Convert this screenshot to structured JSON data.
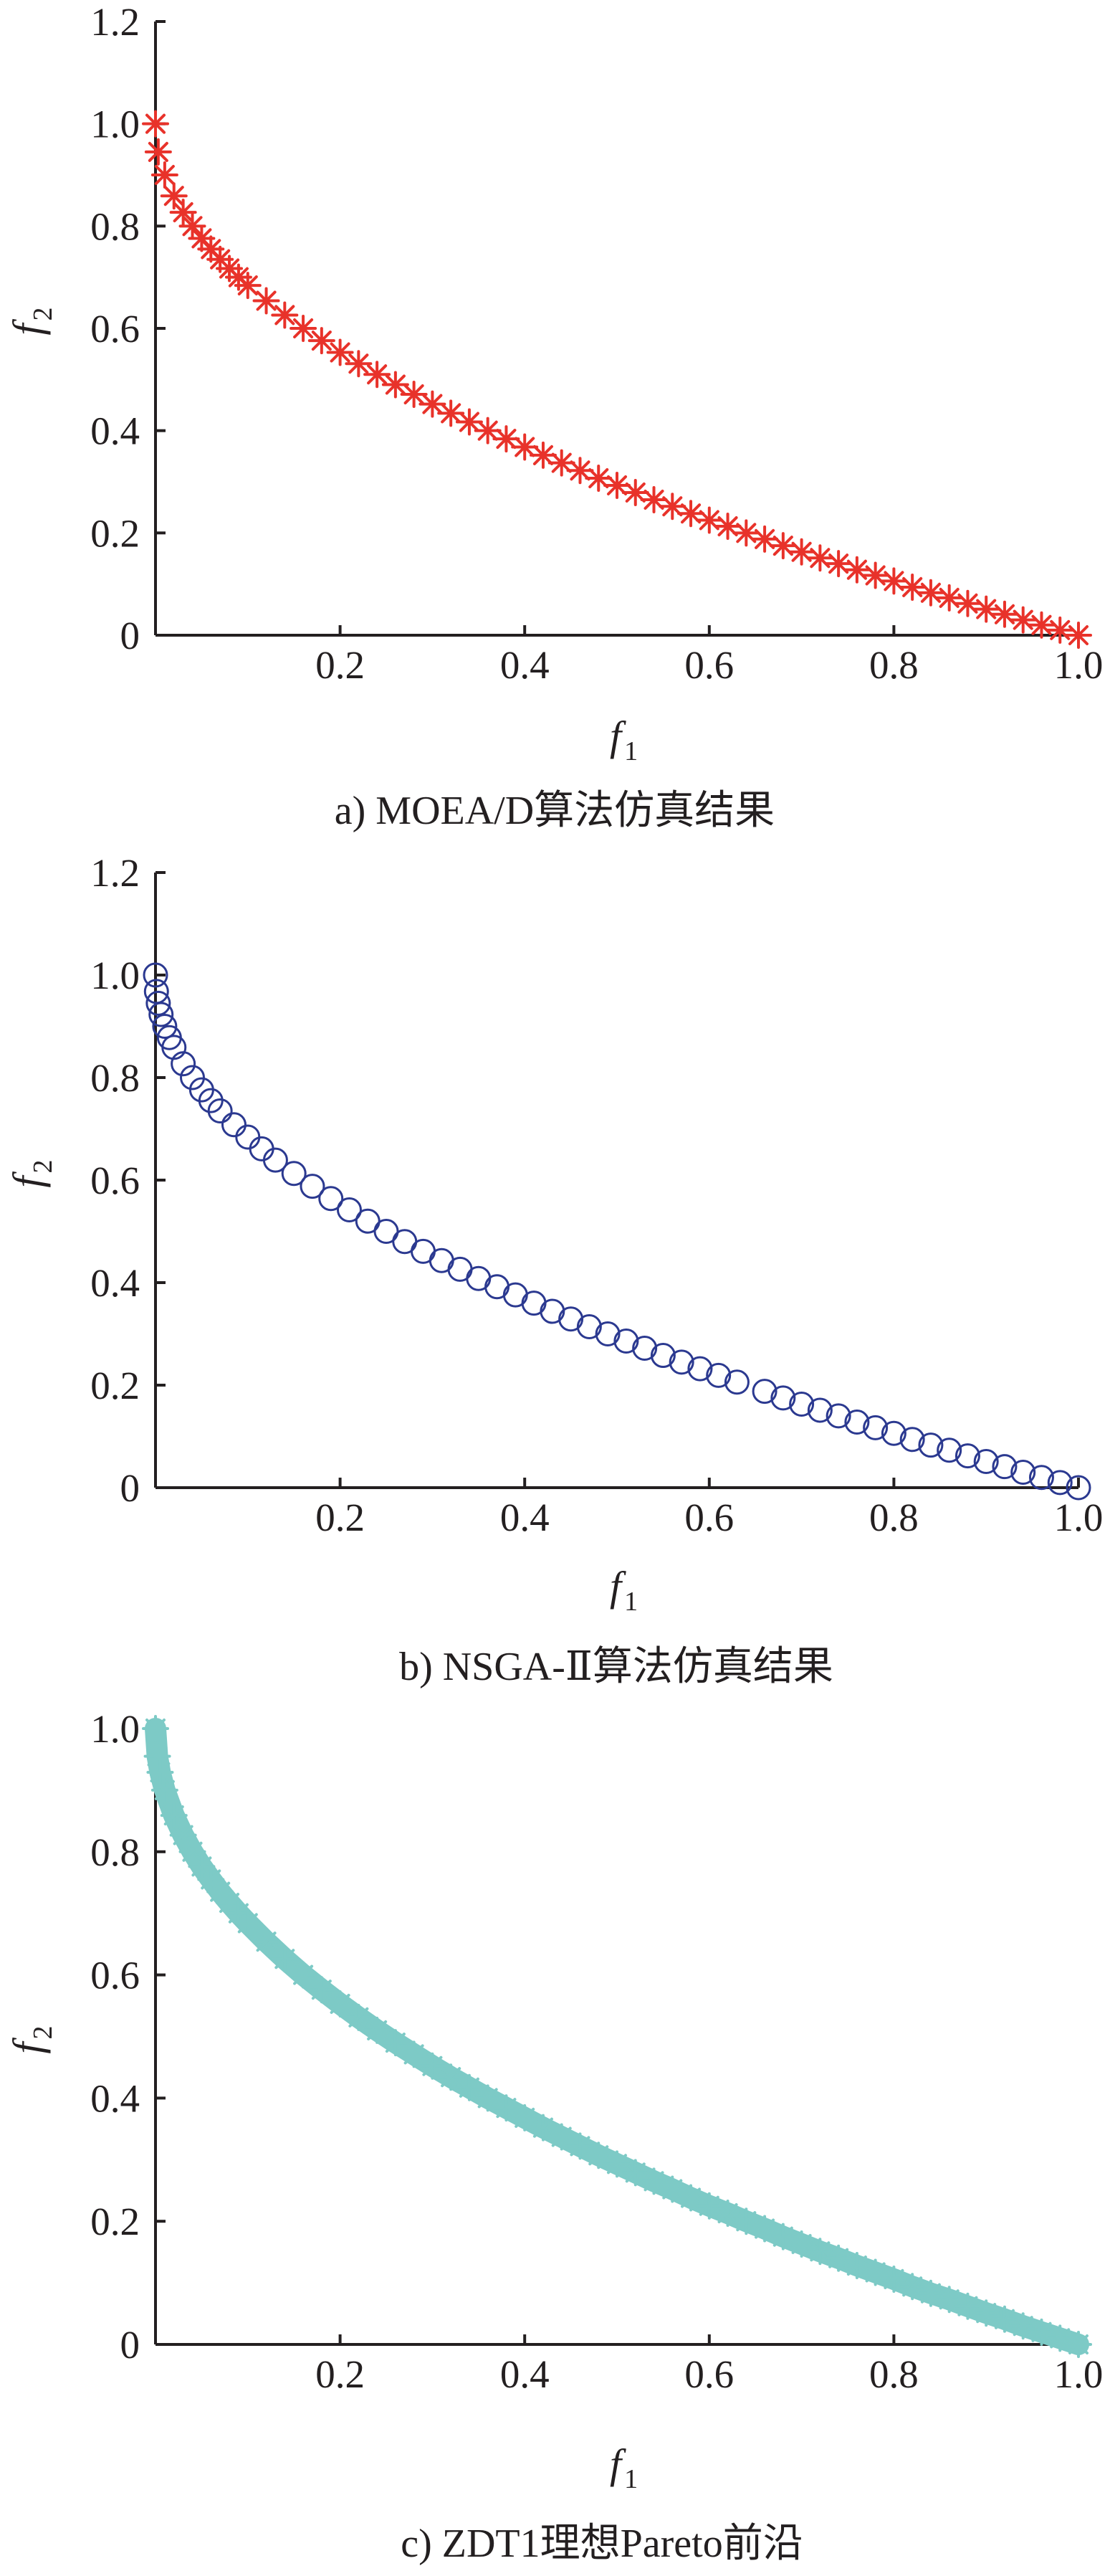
{
  "chart_data": [
    {
      "type": "scatter",
      "caption": "a) MOEA/D算法仿真结果",
      "xlabel": "f",
      "xlabel_sub": "1",
      "ylabel": "f",
      "ylabel_sub": "2",
      "xlim": [
        0,
        1
      ],
      "ylim": [
        0,
        1.2
      ],
      "xticks": [
        "0.2",
        "0.4",
        "0.6",
        "0.8",
        "1.0"
      ],
      "xtick_values": [
        0.2,
        0.4,
        0.6,
        0.8,
        1.0
      ],
      "yticks": [
        "0",
        "0.2",
        "0.4",
        "0.6",
        "0.8",
        "1.0",
        "1.2"
      ],
      "ytick_values": [
        0,
        0.2,
        0.4,
        0.6,
        0.8,
        1.0,
        1.2
      ],
      "marker": "asterisk",
      "color": "#e8322a",
      "series": [
        {
          "x": [
            0.0,
            0.003,
            0.01,
            0.02,
            0.03,
            0.04,
            0.05,
            0.06,
            0.07,
            0.08,
            0.09,
            0.1,
            0.12,
            0.14,
            0.16,
            0.18,
            0.2,
            0.22,
            0.24,
            0.26,
            0.28,
            0.3,
            0.32,
            0.34,
            0.36,
            0.38,
            0.4,
            0.42,
            0.44,
            0.46,
            0.48,
            0.5,
            0.52,
            0.54,
            0.56,
            0.58,
            0.6,
            0.62,
            0.64,
            0.66,
            0.68,
            0.7,
            0.72,
            0.74,
            0.76,
            0.78,
            0.8,
            0.82,
            0.84,
            0.86,
            0.88,
            0.9,
            0.92,
            0.94,
            0.96,
            0.98,
            1.0
          ],
          "y": [
            1.0,
            0.945,
            0.9,
            0.859,
            0.827,
            0.8,
            0.776,
            0.755,
            0.735,
            0.717,
            0.7,
            0.684,
            0.654,
            0.626,
            0.6,
            0.576,
            0.553,
            0.531,
            0.51,
            0.49,
            0.471,
            0.452,
            0.434,
            0.417,
            0.4,
            0.384,
            0.368,
            0.352,
            0.337,
            0.322,
            0.307,
            0.293,
            0.279,
            0.265,
            0.252,
            0.238,
            0.225,
            0.213,
            0.2,
            0.188,
            0.175,
            0.163,
            0.151,
            0.14,
            0.128,
            0.117,
            0.106,
            0.094,
            0.083,
            0.073,
            0.062,
            0.051,
            0.041,
            0.03,
            0.02,
            0.01,
            0.0
          ]
        }
      ]
    },
    {
      "type": "scatter",
      "caption": "b) NSGA-Ⅱ算法仿真结果",
      "xlabel": "f",
      "xlabel_sub": "1",
      "ylabel": "f",
      "ylabel_sub": "2",
      "xlim": [
        0,
        1
      ],
      "ylim": [
        0,
        1.2
      ],
      "xticks": [
        "0.2",
        "0.4",
        "0.6",
        "0.8",
        "1.0"
      ],
      "xtick_values": [
        0.2,
        0.4,
        0.6,
        0.8,
        1.0
      ],
      "yticks": [
        "0",
        "0.2",
        "0.4",
        "0.6",
        "0.8",
        "1.0",
        "1.2"
      ],
      "ytick_values": [
        0,
        0.2,
        0.4,
        0.6,
        0.8,
        1.0,
        1.2
      ],
      "marker": "circle",
      "color": "#2b3990",
      "series": [
        {
          "x": [
            0.0,
            0.001,
            0.003,
            0.006,
            0.01,
            0.015,
            0.02,
            0.03,
            0.04,
            0.05,
            0.06,
            0.07,
            0.085,
            0.1,
            0.115,
            0.13,
            0.15,
            0.17,
            0.19,
            0.21,
            0.23,
            0.25,
            0.27,
            0.29,
            0.31,
            0.33,
            0.35,
            0.37,
            0.39,
            0.41,
            0.43,
            0.45,
            0.47,
            0.49,
            0.51,
            0.53,
            0.55,
            0.57,
            0.59,
            0.61,
            0.63,
            0.66,
            0.68,
            0.7,
            0.72,
            0.74,
            0.76,
            0.78,
            0.8,
            0.82,
            0.84,
            0.86,
            0.88,
            0.9,
            0.92,
            0.94,
            0.96,
            0.98,
            1.0
          ],
          "y": [
            1.0,
            0.968,
            0.945,
            0.923,
            0.9,
            0.878,
            0.859,
            0.827,
            0.8,
            0.776,
            0.755,
            0.735,
            0.708,
            0.684,
            0.661,
            0.639,
            0.613,
            0.588,
            0.564,
            0.542,
            0.52,
            0.5,
            0.48,
            0.461,
            0.443,
            0.426,
            0.408,
            0.392,
            0.376,
            0.36,
            0.344,
            0.329,
            0.314,
            0.3,
            0.286,
            0.272,
            0.258,
            0.245,
            0.232,
            0.219,
            0.206,
            0.188,
            0.175,
            0.163,
            0.151,
            0.14,
            0.128,
            0.117,
            0.106,
            0.094,
            0.083,
            0.073,
            0.062,
            0.051,
            0.041,
            0.03,
            0.02,
            0.01,
            0.0
          ]
        }
      ]
    },
    {
      "type": "scatter",
      "caption": "c) ZDT1理想Pareto前沿",
      "xlabel": "f",
      "xlabel_sub": "1",
      "ylabel": "f",
      "ylabel_sub": "2",
      "xlim": [
        0,
        1
      ],
      "ylim": [
        0,
        1.0
      ],
      "xticks": [
        "0.2",
        "0.4",
        "0.6",
        "0.8",
        "1.0"
      ],
      "xtick_values": [
        0.2,
        0.4,
        0.6,
        0.8,
        1.0
      ],
      "yticks": [
        "0",
        "0.2",
        "0.4",
        "0.6",
        "0.8",
        "1.0"
      ],
      "ytick_values": [
        0,
        0.2,
        0.4,
        0.6,
        0.8,
        1.0
      ],
      "marker": "asterisk-dense",
      "color": "#7dcac6",
      "series": [
        {
          "x": [
            0.0,
            0.002,
            0.005,
            0.01,
            0.02,
            0.03,
            0.04,
            0.05,
            0.06,
            0.07,
            0.08,
            0.09,
            0.1,
            0.12,
            0.14,
            0.16,
            0.18,
            0.2,
            0.22,
            0.24,
            0.26,
            0.28,
            0.3,
            0.32,
            0.34,
            0.36,
            0.38,
            0.4,
            0.42,
            0.44,
            0.46,
            0.48,
            0.5,
            0.52,
            0.54,
            0.56,
            0.58,
            0.6,
            0.62,
            0.64,
            0.66,
            0.68,
            0.7,
            0.72,
            0.74,
            0.76,
            0.78,
            0.8,
            0.82,
            0.84,
            0.86,
            0.88,
            0.9,
            0.92,
            0.94,
            0.96,
            0.98,
            1.0
          ],
          "y": [
            1.0,
            0.955,
            0.929,
            0.9,
            0.859,
            0.827,
            0.8,
            0.776,
            0.755,
            0.735,
            0.717,
            0.7,
            0.684,
            0.654,
            0.626,
            0.6,
            0.576,
            0.553,
            0.531,
            0.51,
            0.49,
            0.471,
            0.452,
            0.434,
            0.417,
            0.4,
            0.384,
            0.368,
            0.352,
            0.337,
            0.322,
            0.307,
            0.293,
            0.279,
            0.265,
            0.252,
            0.238,
            0.225,
            0.213,
            0.2,
            0.188,
            0.175,
            0.163,
            0.151,
            0.14,
            0.128,
            0.117,
            0.106,
            0.094,
            0.083,
            0.073,
            0.062,
            0.051,
            0.041,
            0.03,
            0.02,
            0.01,
            0.0
          ]
        }
      ]
    }
  ]
}
